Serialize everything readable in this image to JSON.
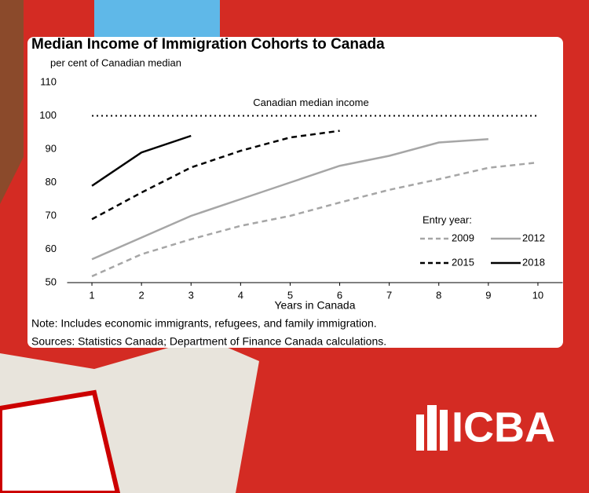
{
  "chart_data": {
    "type": "line",
    "title": "Median Income of Immigration Cohorts to Canada",
    "y_label": "per cent of Canadian median",
    "x_label": "Years in Canada",
    "x": [
      1,
      2,
      3,
      4,
      5,
      6,
      7,
      8,
      9,
      10
    ],
    "xlim": [
      0.5,
      10.5
    ],
    "xticks": [
      1,
      2,
      3,
      4,
      5,
      6,
      7,
      8,
      9,
      10
    ],
    "ylim": [
      50,
      110
    ],
    "yticks": [
      50,
      60,
      70,
      80,
      90,
      100,
      110
    ],
    "reference_line": {
      "value": 100,
      "label": "Canadian median income"
    },
    "legend_title": "Entry year:",
    "legend_position": "lower right",
    "series": [
      {
        "name": "2009",
        "color": "#a6a6a6",
        "style": "dashed",
        "values": [
          51.9,
          58.5,
          63,
          67,
          70,
          74,
          77.8,
          81,
          84.4,
          86
        ]
      },
      {
        "name": "2012",
        "color": "#a6a6a6",
        "style": "solid",
        "values": [
          57,
          63.5,
          70,
          75,
          80,
          85,
          88,
          92,
          93,
          null
        ]
      },
      {
        "name": "2015",
        "color": "#000000",
        "style": "dashed",
        "values": [
          69,
          77,
          84.5,
          89.5,
          93.5,
          95.5,
          null,
          null,
          null,
          null
        ]
      },
      {
        "name": "2018",
        "color": "#000000",
        "style": "solid",
        "values": [
          79,
          89,
          94,
          null,
          null,
          null,
          null,
          null,
          null,
          null
        ]
      }
    ],
    "notes": [
      "Note: Includes economic immigrants, refugees, and family immigration.",
      "Sources: Statistics Canada; Department of Finance Canada calculations."
    ]
  },
  "logo": "ICBA"
}
